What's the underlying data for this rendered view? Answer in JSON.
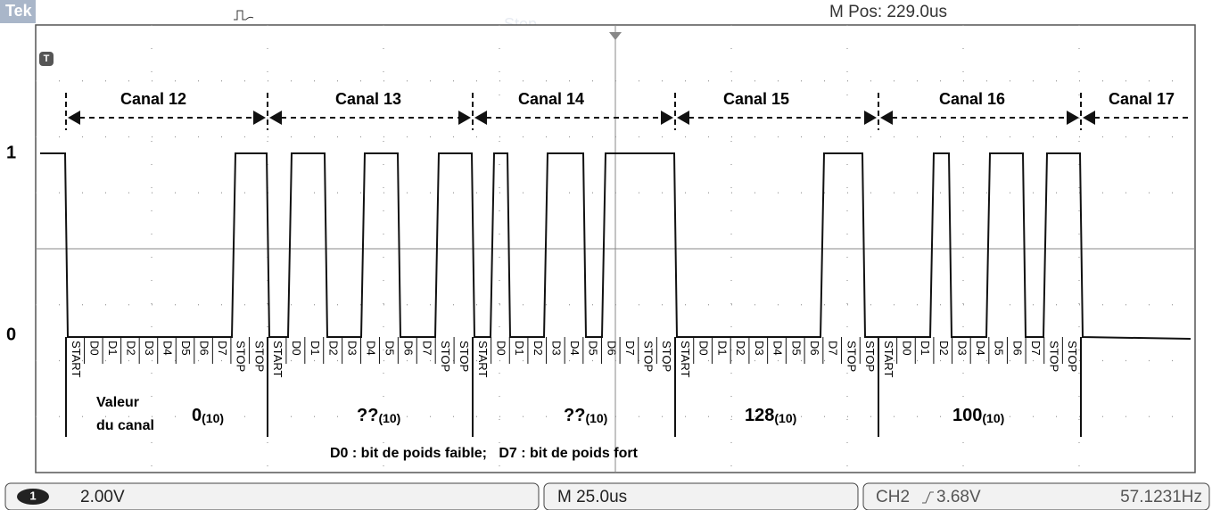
{
  "header": {
    "brand": "Tek",
    "status": "Stop",
    "m_pos": "M Pos: 229.0us"
  },
  "trigger_badge": "T",
  "levels": {
    "high": "1",
    "low": "0"
  },
  "channels": [
    {
      "label": "Canal 12",
      "bits": [
        "START",
        "D0",
        "D1",
        "D2",
        "D3",
        "D4",
        "D5",
        "D6",
        "D7",
        "STOP",
        "STOP"
      ],
      "value": "0",
      "base": "(10)"
    },
    {
      "label": "Canal 13",
      "bits": [
        "START",
        "D0",
        "D1",
        "D2",
        "D3",
        "D4",
        "D5",
        "D6",
        "D7",
        "STOP",
        "STOP"
      ],
      "value": "??",
      "base": "(10)"
    },
    {
      "label": "Canal 14",
      "bits": [
        "START",
        "D0",
        "D1",
        "D2",
        "D3",
        "D4",
        "D5",
        "D6",
        "D7",
        "STOP",
        "STOP"
      ],
      "value": "??",
      "base": "(10)"
    },
    {
      "label": "Canal 15",
      "bits": [
        "START",
        "D0",
        "D1",
        "D2",
        "D3",
        "D4",
        "D5",
        "D6",
        "D7",
        "STOP",
        "STOP"
      ],
      "value": "128",
      "base": "(10)"
    },
    {
      "label": "Canal 16",
      "bits": [
        "START",
        "D0",
        "D1",
        "D2",
        "D3",
        "D4",
        "D5",
        "D6",
        "D7",
        "STOP",
        "STOP"
      ],
      "value": "100",
      "base": "(10)"
    },
    {
      "label": "Canal 17"
    }
  ],
  "value_caption": [
    "Valeur",
    "du canal"
  ],
  "note": "D0 : bit de poids faible;   D7 : bit de poids fort",
  "footer": {
    "ch_badge": "1",
    "volts": "2.00V",
    "timebase": "M 25.0us",
    "trigger_source": "CH2",
    "trigger_level": "3.68V",
    "frequency": "57.1231Hz"
  }
}
